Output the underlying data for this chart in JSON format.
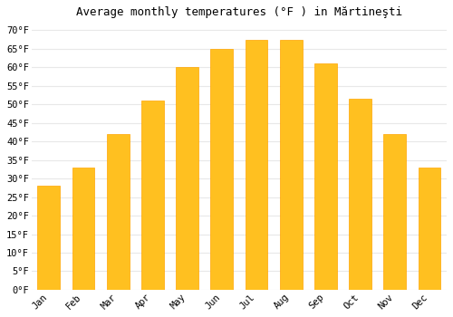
{
  "title": "Average monthly temperatures (°F ) in Mărtineşti",
  "months": [
    "Jan",
    "Feb",
    "Mar",
    "Apr",
    "May",
    "Jun",
    "Jul",
    "Aug",
    "Sep",
    "Oct",
    "Nov",
    "Dec"
  ],
  "values": [
    28,
    33,
    42,
    51,
    60,
    65,
    67.5,
    67.5,
    61,
    51.5,
    42,
    33
  ],
  "bar_color": "#FFC020",
  "bar_edge_color": "#FFA500",
  "background_color": "#FFFFFF",
  "plot_bg_color": "#FFFFFF",
  "ylim": [
    0,
    72
  ],
  "yticks": [
    0,
    5,
    10,
    15,
    20,
    25,
    30,
    35,
    40,
    45,
    50,
    55,
    60,
    65,
    70
  ],
  "grid_color": "#E8E8E8",
  "title_fontsize": 9,
  "tick_fontsize": 7.5,
  "bar_width": 0.65
}
